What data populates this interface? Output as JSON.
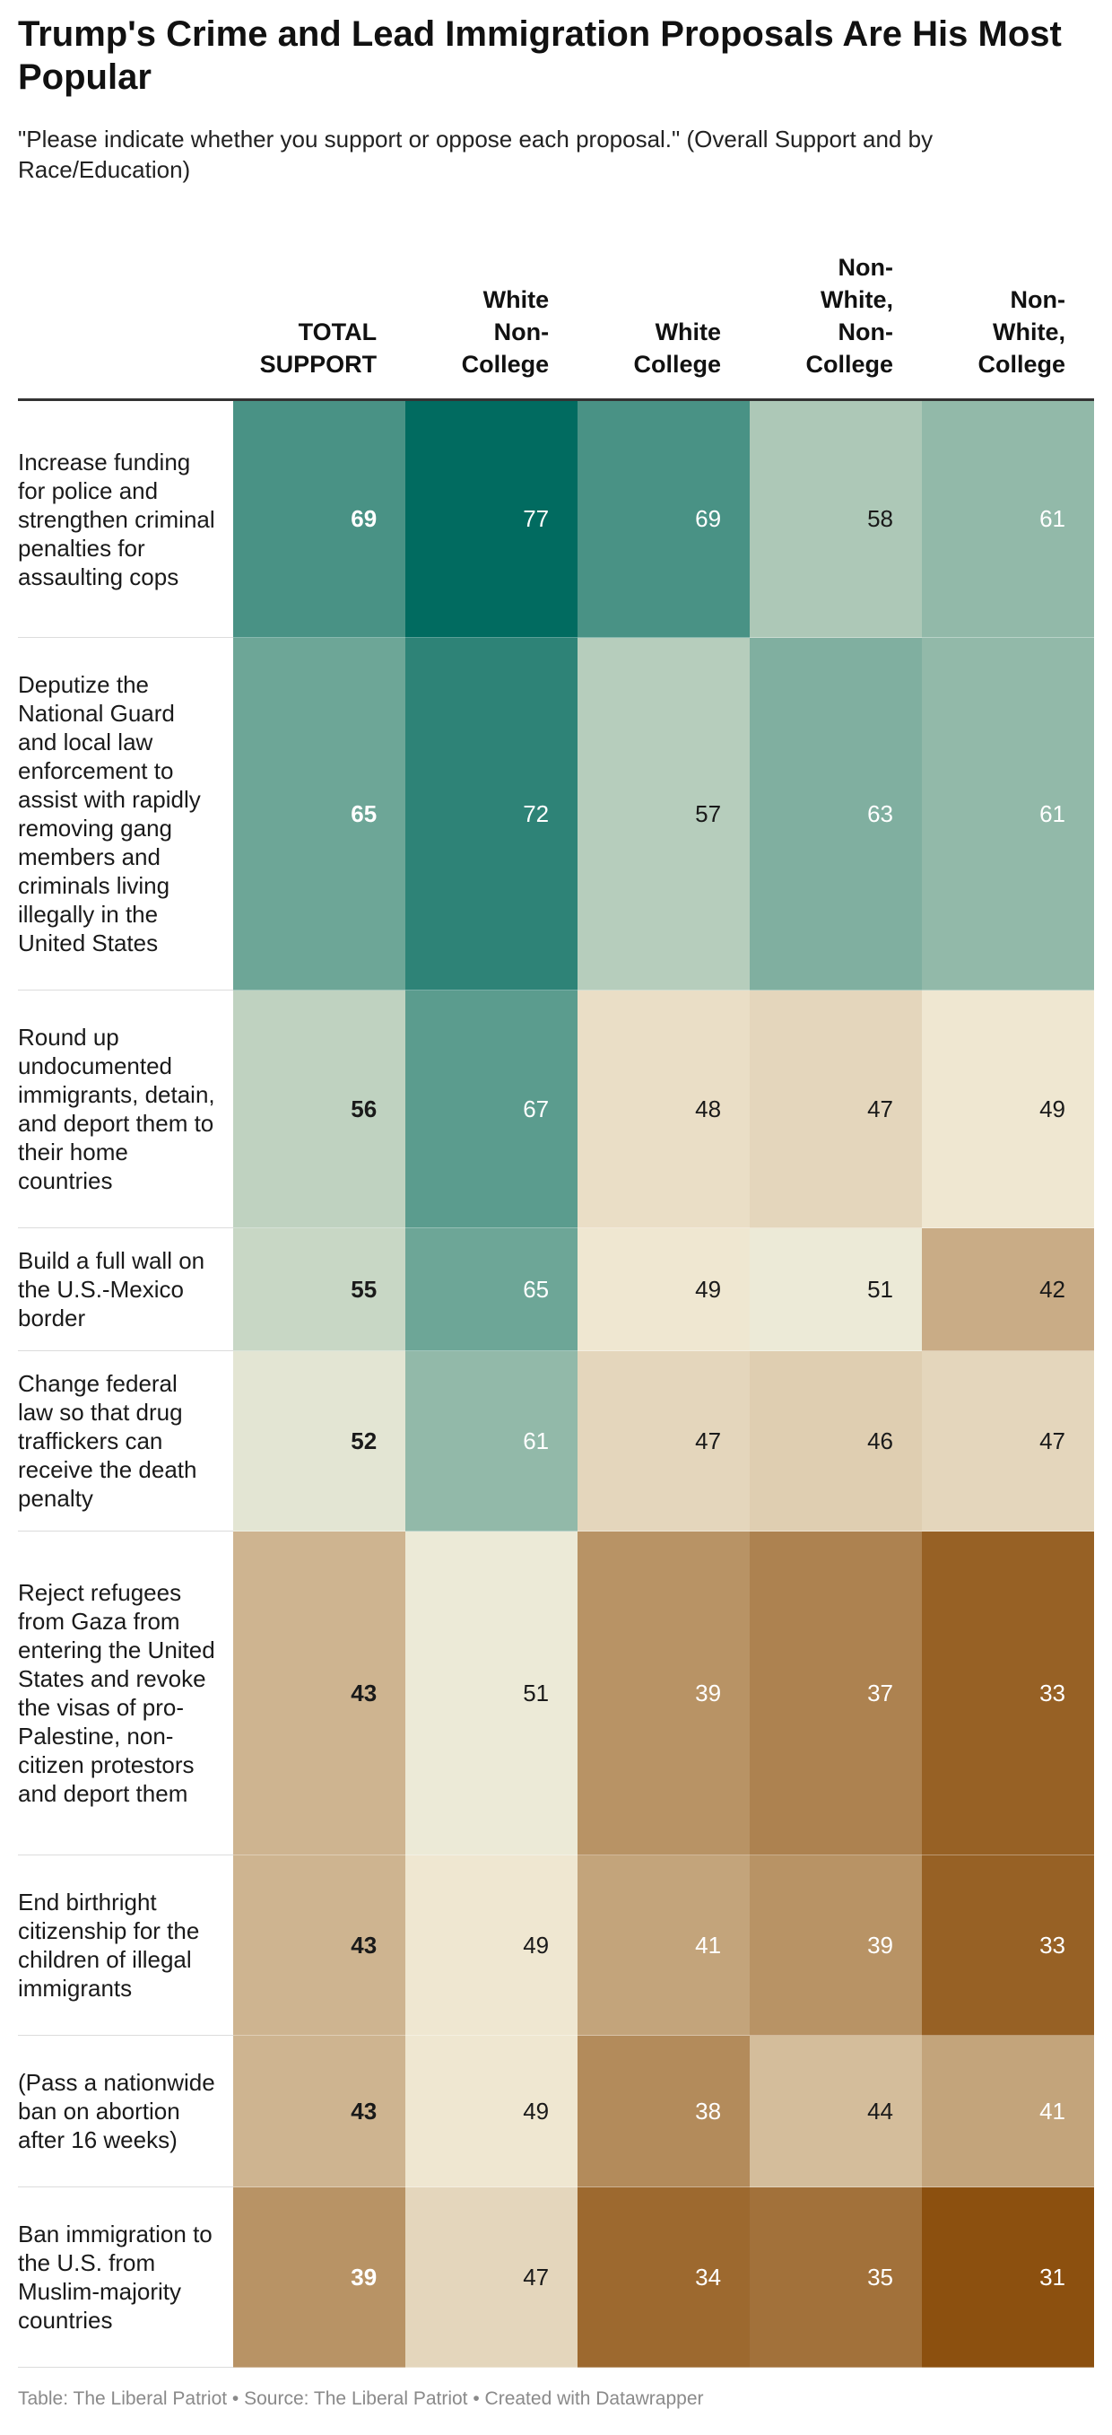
{
  "title": "Trump's Crime and Lead Immigration Proposals Are His Most Popular",
  "subtitle": "\"Please indicate whether you support or oppose each proposal.\" (Overall Support and by Race/Education)",
  "footer": "Table: The Liberal Patriot • Source: The Liberal Patriot • Created with Datawrapper",
  "chart_data": {
    "type": "table",
    "columns": [
      {
        "key": "total",
        "lines": [
          "TOTAL",
          "SUPPORT"
        ]
      },
      {
        "key": "white_noncollege",
        "lines": [
          "White",
          "Non-",
          "College"
        ]
      },
      {
        "key": "white_college",
        "lines": [
          "White",
          "College"
        ]
      },
      {
        "key": "nonwhite_noncollege",
        "lines": [
          "Non-",
          "White,",
          "Non-",
          "College"
        ]
      },
      {
        "key": "nonwhite_college",
        "lines": [
          "Non-",
          "White,",
          "College"
        ]
      }
    ],
    "rows": [
      {
        "label": "Increase funding for police and strengthen criminal penalties for assaulting cops",
        "values": [
          69,
          77,
          69,
          58,
          61
        ]
      },
      {
        "label": "Deputize the National Guard and local law enforcement to assist with rapidly removing gang members and criminals living illegally in the United States",
        "values": [
          65,
          72,
          57,
          63,
          61
        ]
      },
      {
        "label": "Round up undocumented immigrants, detain, and deport them to their home countries",
        "values": [
          56,
          67,
          48,
          47,
          49
        ]
      },
      {
        "label": "Build a full wall on the U.S.-Mexico border",
        "values": [
          55,
          65,
          49,
          51,
          42
        ]
      },
      {
        "label": "Change federal law so that drug traffickers can receive the death penalty",
        "values": [
          52,
          61,
          47,
          46,
          47
        ]
      },
      {
        "label": "Reject refugees from Gaza from entering the United States and revoke the visas of pro-Palestine, non-citizen protestors and deport them",
        "values": [
          43,
          51,
          39,
          37,
          33
        ]
      },
      {
        "label": "End birthright citizenship for the children of illegal immigrants",
        "values": [
          43,
          49,
          41,
          39,
          33
        ]
      },
      {
        "label": "(Pass a nationwide ban on abortion after 16 weeks)",
        "values": [
          43,
          49,
          38,
          44,
          41
        ]
      },
      {
        "label": "Ban immigration to the U.S. from Muslim-majority countries",
        "values": [
          39,
          47,
          34,
          35,
          31
        ]
      }
    ],
    "color_scale": {
      "stops": [
        {
          "value": 31,
          "color": "#8c500f"
        },
        {
          "value": 50,
          "color": "#f5efdc"
        },
        {
          "value": 77,
          "color": "#016b60"
        }
      ]
    }
  }
}
